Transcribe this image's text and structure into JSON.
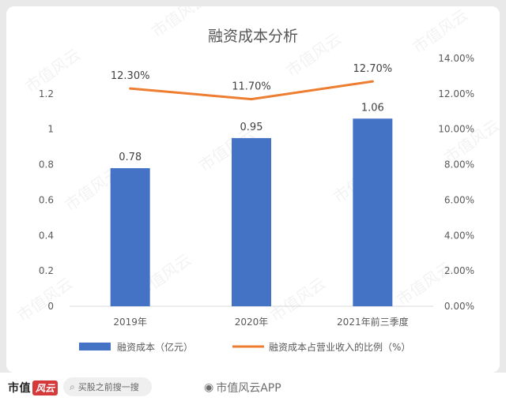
{
  "chart_data": {
    "type": "bar+line",
    "title": "融资成本分析",
    "categories": [
      "2019年",
      "2020年",
      "2021年前三季度"
    ],
    "series": [
      {
        "name": "融资成本（亿元）",
        "type": "bar",
        "axis": "left",
        "values": [
          0.78,
          0.95,
          1.06
        ],
        "labels": [
          "0.78",
          "0.95",
          "1.06"
        ],
        "color": "#4472c4"
      },
      {
        "name": "融资成本占营业收入的比例（%）",
        "type": "line",
        "axis": "right",
        "values": [
          12.3,
          11.7,
          12.7
        ],
        "labels": [
          "12.30%",
          "11.70%",
          "12.70%"
        ],
        "color": "#ed7d31"
      }
    ],
    "y_left": {
      "min": 0,
      "max": 1.4,
      "ticks": [
        0,
        0.2,
        0.4,
        0.6,
        0.8,
        1,
        1.2
      ],
      "tick_labels": [
        "0",
        "0.2",
        "0.4",
        "0.6",
        "0.8",
        "1",
        "1.2"
      ]
    },
    "y_right": {
      "min": 0,
      "max": 14,
      "ticks": [
        0,
        2,
        4,
        6,
        8,
        10,
        12,
        14
      ],
      "tick_labels": [
        "0.00%",
        "2.00%",
        "4.00%",
        "6.00%",
        "8.00%",
        "10.00%",
        "12.00%",
        "14.00%"
      ]
    },
    "grid": false,
    "legend_position": "bottom"
  },
  "watermark": "市值风云",
  "footer": {
    "brand_text": "市值",
    "brand_mark": "风云",
    "search_placeholder": "买股之前搜一搜",
    "search_icon": "magnifier-icon",
    "weibo_icon": "weibo-icon",
    "weibo_text": "市值风云APP"
  }
}
